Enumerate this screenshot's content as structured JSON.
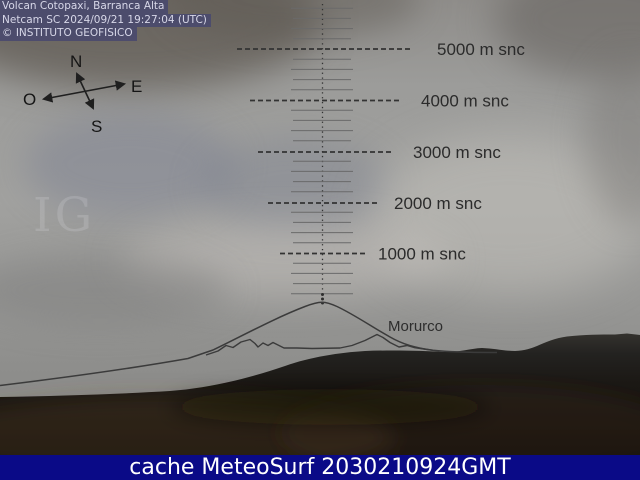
{
  "overlay": {
    "line1": "Volcan Cotopaxi, Barranca Alta",
    "line2": "Netcam SC 2024/09/21 19:27:04 (UTC)",
    "line3": "© INSTITUTO GEOFISICO"
  },
  "compass": {
    "north": "N",
    "east": "E",
    "south": "S",
    "west": "O"
  },
  "scale": {
    "unit": "m snc",
    "labels": [
      "5000 m snc",
      "4000 m snc",
      "3000 m snc",
      "2000 m snc",
      "1000 m snc"
    ]
  },
  "peak_label": "Morurco",
  "watermark": "IG",
  "caption": "cache MeteoSurf 2030210924GMT",
  "colors": {
    "caption_bg": "#0a0a87",
    "caption_text": "#ffffff",
    "overlay_bg": "#49496e",
    "overlay_text": "#d7d7e8",
    "annotation_ink": "#333333",
    "sky_gray": "#9c9c9a",
    "terrain_dark": "#17120d"
  }
}
